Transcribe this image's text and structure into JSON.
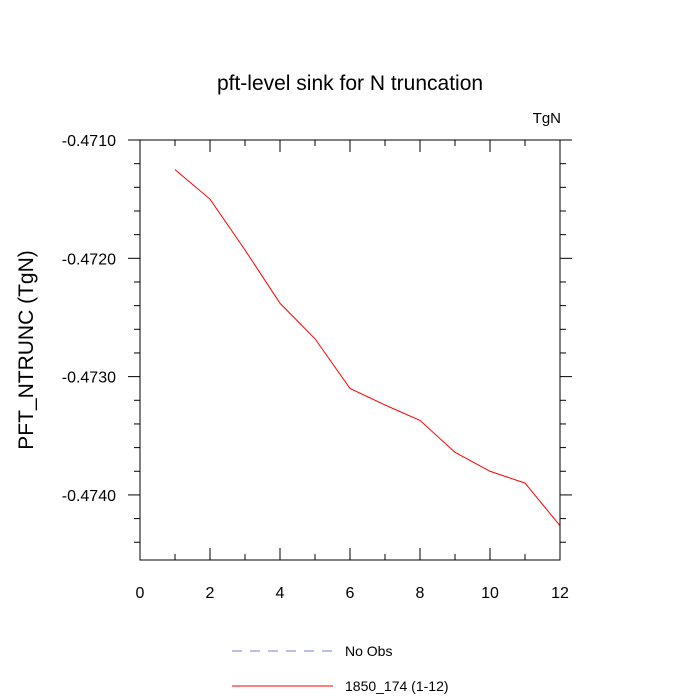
{
  "chart_data": {
    "type": "line",
    "title": "pft-level sink for N truncation",
    "units_label": "TgN",
    "ylabel": "PFT_NTRUNC  (TgN)",
    "xlabel": "",
    "xlim": [
      0,
      12
    ],
    "ylim": [
      -0.47455,
      -0.471
    ],
    "x_ticks": [
      0,
      2,
      4,
      6,
      8,
      10,
      12
    ],
    "x_tick_labels": [
      "0",
      "2",
      "4",
      "6",
      "8",
      "10",
      "12"
    ],
    "y_ticks": [
      -0.471,
      -0.472,
      -0.473,
      -0.474
    ],
    "y_tick_labels": [
      "-0.4710",
      "-0.4720",
      "-0.4730",
      "-0.4740"
    ],
    "grid": false,
    "legend_position": "bottom",
    "series": [
      {
        "name": "No Obs",
        "color": "#7b7bd6",
        "dash": "dashed",
        "x": [],
        "y": []
      },
      {
        "name": "1850_174 (1-12)",
        "color": "#ff0000",
        "dash": "solid",
        "x": [
          1,
          2,
          3,
          4,
          5,
          6,
          7,
          8,
          9,
          10,
          11,
          12
        ],
        "y": [
          -0.47125,
          -0.4715,
          -0.47193,
          -0.47238,
          -0.47268,
          -0.4731,
          -0.47324,
          -0.47337,
          -0.47364,
          -0.4738,
          -0.4739,
          -0.47426
        ]
      }
    ]
  }
}
